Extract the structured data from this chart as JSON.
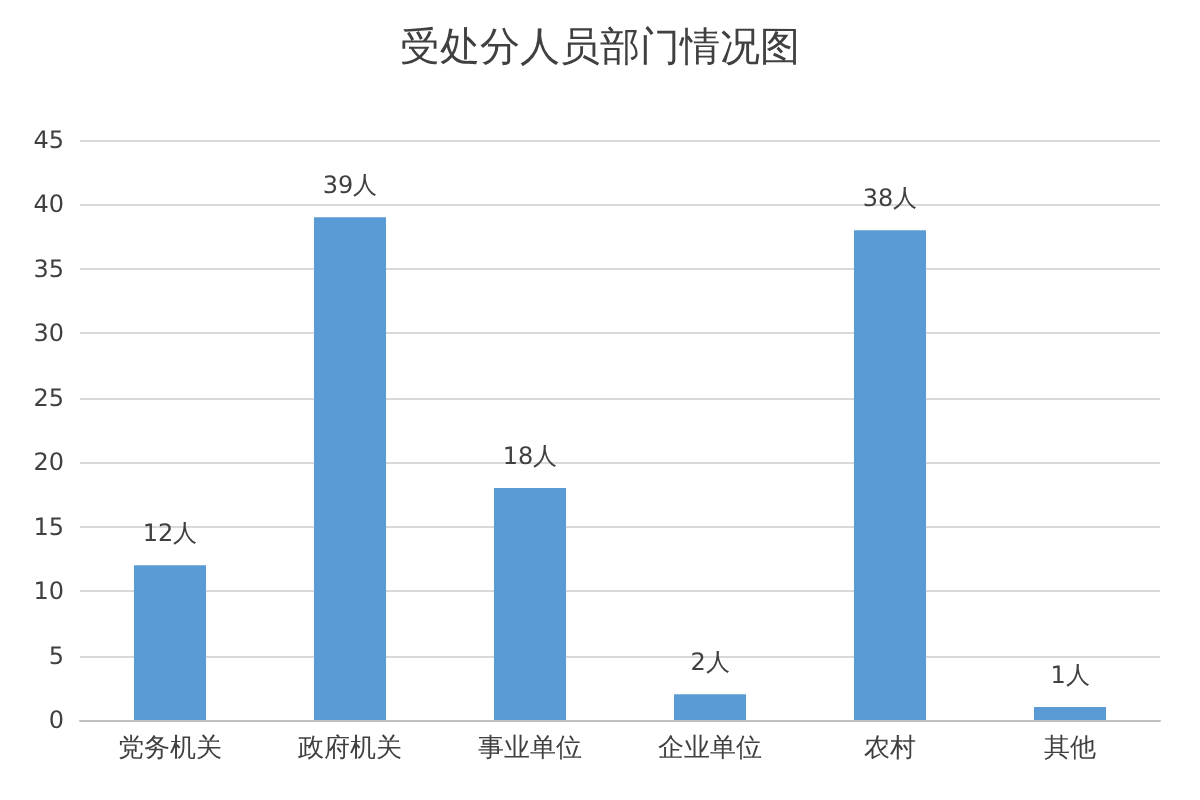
{
  "chart_data": {
    "type": "bar",
    "title": "受处分人员部门情况图",
    "categories": [
      "党务机关",
      "政府机关",
      "事业单位",
      "企业单位",
      "农村",
      "其他"
    ],
    "values": [
      12,
      39,
      18,
      2,
      38,
      1
    ],
    "value_labels": [
      "12人",
      "39人",
      "18人",
      "2人",
      "38人",
      "1人"
    ],
    "color": "#5b9bd5",
    "ylim": [
      0,
      45
    ],
    "yticks": [
      0,
      5,
      10,
      15,
      20,
      25,
      30,
      35,
      40,
      45
    ],
    "grid": "y"
  }
}
